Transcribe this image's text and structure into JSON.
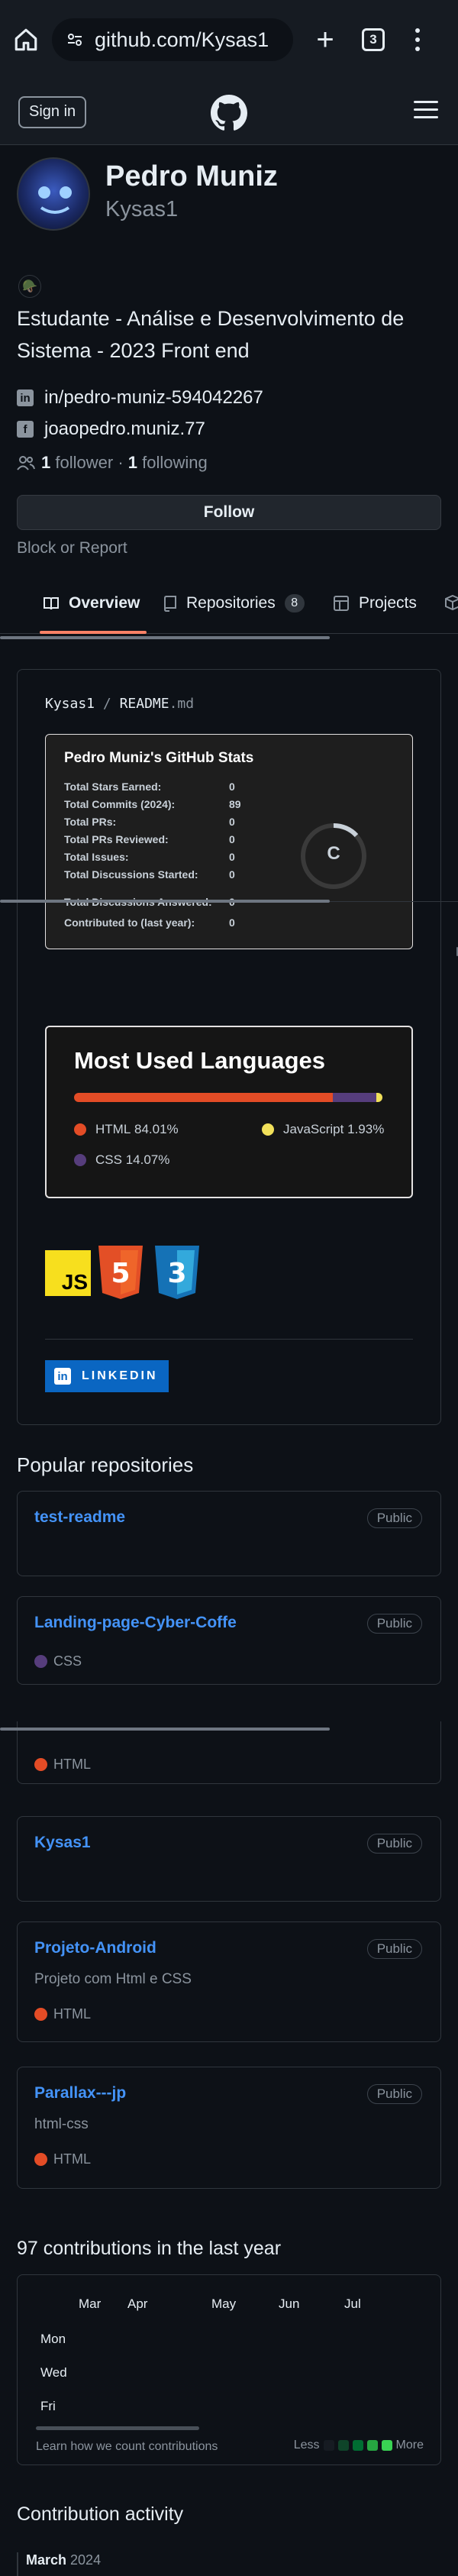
{
  "browser": {
    "url": "github.com/Kysas1",
    "tab_count": "3"
  },
  "header": {
    "signin_label": "Sign in"
  },
  "profile": {
    "name": "Pedro Muniz",
    "login": "Kysas1",
    "status_emoji": "🪖",
    "bio": "Estudante - Análise e Desenvolvimento de Sistema - 2023 Front end",
    "linkedin": "in/pedro-muniz-594042267",
    "facebook": "joaopedro.muniz.77",
    "followers_count": "1",
    "followers_label": "follower",
    "separator": "·",
    "following_count": "1",
    "following_label": "following",
    "follow_label": "Follow",
    "block_label": "Block or Report"
  },
  "tabs": [
    {
      "label": "Overview"
    },
    {
      "label": "Repositories",
      "count": "8"
    },
    {
      "label": "Projects"
    }
  ],
  "readme": {
    "path_user": "Kysas1",
    "path_sep": "/",
    "path_file": "README",
    "path_ext": ".md",
    "stats": {
      "title": "Pedro Muniz's GitHub Stats",
      "rows": [
        {
          "label": "Total Stars Earned:",
          "value": "0"
        },
        {
          "label": "Total Commits (2024):",
          "value": "89"
        },
        {
          "label": "Total PRs:",
          "value": "0"
        },
        {
          "label": "Total PRs Reviewed:",
          "value": "0"
        },
        {
          "label": "Total Issues:",
          "value": "0"
        },
        {
          "label": "Total Discussions Started:",
          "value": "0"
        },
        {
          "label": "Total Discussions Answered:",
          "value": "0"
        },
        {
          "label": "Contributed to (last year):",
          "value": "0"
        }
      ],
      "rank": "C"
    },
    "languages": {
      "title": "Most Used Languages",
      "items": [
        {
          "name": "HTML",
          "percent": "84.01%",
          "fraction": 0.8401,
          "color": "#e34c26"
        },
        {
          "name": "JavaScript",
          "percent": "1.93%",
          "fraction": 0.0193,
          "color": "#f1e05a"
        },
        {
          "name": "CSS",
          "percent": "14.07%",
          "fraction": 0.1407,
          "color": "#563d7c"
        }
      ]
    },
    "badges": {
      "js_label": "JS",
      "html_label": "5",
      "css_label": "3"
    },
    "linkedin_badge": "LINKEDIN"
  },
  "popular": {
    "title": "Popular repositories",
    "repos": [
      {
        "name": "test-readme",
        "visibility": "Public",
        "description": "",
        "language": "",
        "lang_color": ""
      },
      {
        "name": "Landing-page-Cyber-Coffe",
        "visibility": "Public",
        "description": "",
        "language": "CSS",
        "lang_color": "#563d7c"
      },
      {
        "name": "",
        "visibility": "",
        "description": "",
        "language": "HTML",
        "lang_color": "#e34c26"
      },
      {
        "name": "Kysas1",
        "visibility": "Public",
        "description": "",
        "language": "",
        "lang_color": ""
      },
      {
        "name": "Projeto-Android",
        "visibility": "Public",
        "description": "Projeto com Html e CSS",
        "language": "HTML",
        "lang_color": "#e34c26"
      },
      {
        "name": "Parallax---jp",
        "visibility": "Public",
        "description": "html-css",
        "language": "HTML",
        "lang_color": "#e34c26"
      }
    ]
  },
  "contributions": {
    "title": "97 contributions in the last year",
    "months": [
      "Mar",
      "Apr",
      "May",
      "Jun",
      "Jul"
    ],
    "weekdays": [
      "Mon",
      "Wed",
      "Fri"
    ],
    "learn_label": "Learn how we count contributions",
    "less_label": "Less",
    "more_label": "More",
    "legend_colors": [
      "#161b22",
      "#0e4429",
      "#006d32",
      "#26a641",
      "#39d353"
    ]
  },
  "activity": {
    "title": "Contribution activity",
    "month": "March",
    "year": "2024"
  }
}
